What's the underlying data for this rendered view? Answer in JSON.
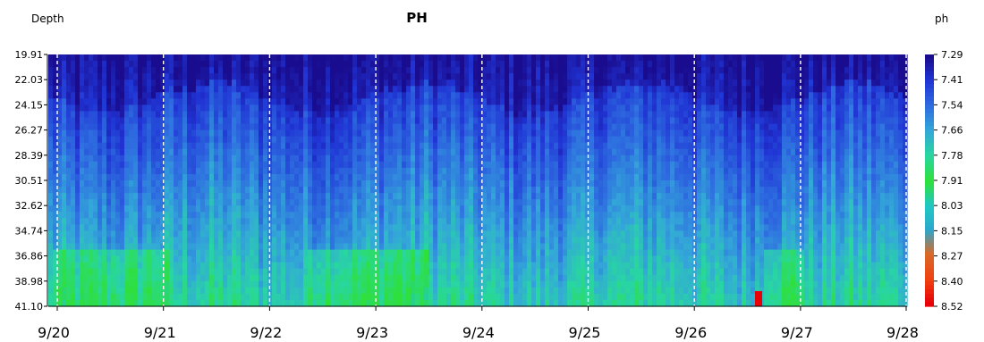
{
  "chart_data": {
    "type": "heatmap",
    "title": "PH",
    "ylabel": "Depth",
    "colorbar_label": "ph",
    "x_ticks": [
      "9/20",
      "9/21",
      "9/22",
      "9/23",
      "9/24",
      "9/25",
      "9/26",
      "9/27",
      "9/28"
    ],
    "x_range": [
      "9/20",
      "9/28"
    ],
    "y_ticks": [
      "19.91",
      "22.03",
      "24.15",
      "26.27",
      "28.39",
      "30.51",
      "32.62",
      "34.74",
      "36.86",
      "38.98",
      "41.10"
    ],
    "y_range": [
      19.91,
      41.1
    ],
    "y_inverted": true,
    "colorbar_ticks": [
      "7.29",
      "7.41",
      "7.54",
      "7.66",
      "7.78",
      "7.91",
      "8.03",
      "8.15",
      "8.27",
      "8.40",
      "8.52"
    ],
    "color_range": [
      7.29,
      8.52
    ],
    "day_gridlines": "dashed-white",
    "colorscale": [
      {
        "value": 7.29,
        "color": "#1a0c8e"
      },
      {
        "value": 7.41,
        "color": "#2034d4"
      },
      {
        "value": 7.54,
        "color": "#2e6ee0"
      },
      {
        "value": 7.66,
        "color": "#33a8d8"
      },
      {
        "value": 7.78,
        "color": "#28d6a2"
      },
      {
        "value": 7.91,
        "color": "#2fe03a"
      },
      {
        "value": 8.03,
        "color": "#20c8c4"
      },
      {
        "value": 8.15,
        "color": "#2aa8cc"
      },
      {
        "value": 8.27,
        "color": "#d86a2a"
      },
      {
        "value": 8.4,
        "color": "#f04010"
      },
      {
        "value": 8.52,
        "color": "#e80008"
      }
    ],
    "depth_profile_summary": [
      {
        "depth_range": [
          19.91,
          24.15
        ],
        "ph_approx": 7.35
      },
      {
        "depth_range": [
          24.15,
          34.74
        ],
        "ph_approx": 7.55
      },
      {
        "depth_range": [
          34.74,
          41.1
        ],
        "ph_approx": 7.7
      }
    ]
  }
}
